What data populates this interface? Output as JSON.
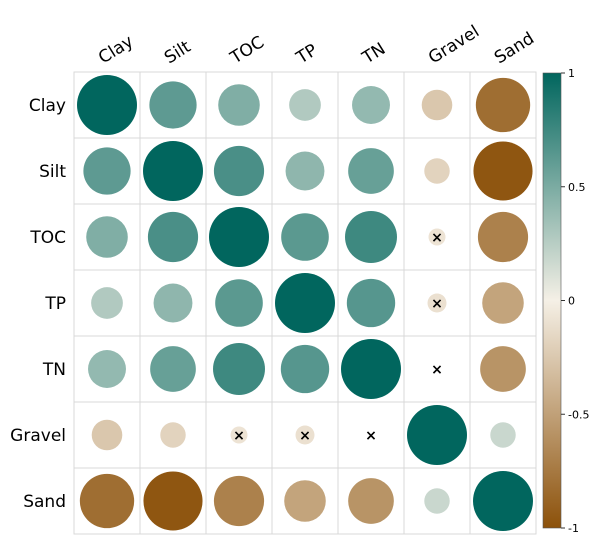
{
  "chart_data": {
    "type": "heatmap",
    "style": "correlation-circles",
    "variables": [
      "Clay",
      "Silt",
      "TOC",
      "TP",
      "TN",
      "Gravel",
      "Sand"
    ],
    "matrix": [
      [
        1.0,
        0.62,
        0.48,
        0.28,
        0.4,
        -0.26,
        -0.82
      ],
      [
        0.62,
        1.0,
        0.7,
        0.42,
        0.58,
        -0.18,
        -0.97
      ],
      [
        0.48,
        0.7,
        1.0,
        0.63,
        0.75,
        -0.08,
        -0.7
      ],
      [
        0.28,
        0.42,
        0.63,
        1.0,
        0.65,
        -0.1,
        -0.48
      ],
      [
        0.4,
        0.58,
        0.75,
        0.65,
        1.0,
        -0.02,
        -0.58
      ],
      [
        -0.26,
        -0.18,
        -0.08,
        -0.1,
        -0.02,
        1.0,
        0.18
      ],
      [
        -0.82,
        -0.97,
        -0.7,
        -0.48,
        -0.58,
        0.18,
        1.0
      ]
    ],
    "insignificant": [
      [
        2,
        5
      ],
      [
        3,
        5
      ],
      [
        4,
        5
      ],
      [
        5,
        2
      ],
      [
        5,
        3
      ],
      [
        5,
        4
      ]
    ],
    "insignificant_marker": "×",
    "color_scale": {
      "min": -1,
      "max": 1,
      "low": "#8c510a",
      "mid": "#f5f0e6",
      "high": "#01665e"
    },
    "colorbar_ticks": [
      "1",
      "0.5",
      "0",
      "-0.5",
      "-1"
    ],
    "colorbar_values": [
      1,
      0.5,
      0,
      -0.5,
      -1
    ],
    "grid": true,
    "legend": "colorbar-right"
  }
}
